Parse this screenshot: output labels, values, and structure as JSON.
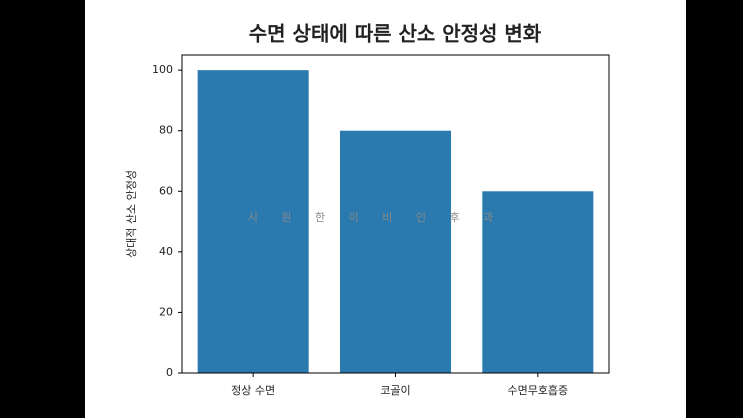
{
  "chart_data": {
    "type": "bar",
    "title": "수면 상태에 따른 산소 안정성 변화",
    "y_label": "상대적 산소 안정성",
    "annotation": "시 원 한 이 비 인 후 과",
    "categories": [
      "정상 수면",
      "코골이",
      "수면무호흡증"
    ],
    "values": [
      100,
      80,
      60
    ],
    "color": "#2a7ab0",
    "ylim": [
      0,
      105
    ],
    "yticks": [
      0,
      20,
      40,
      60,
      80,
      100
    ],
    "grid": false
  }
}
